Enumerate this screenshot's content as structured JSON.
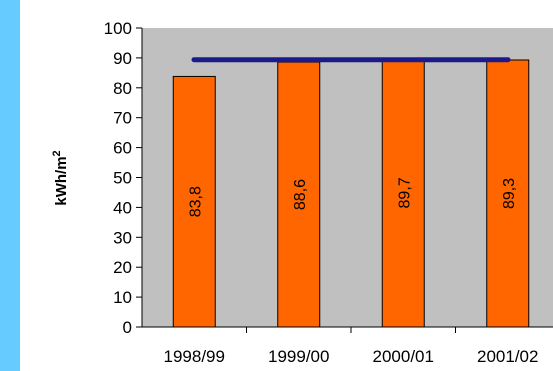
{
  "chart_data": {
    "type": "bar",
    "categories": [
      "1998/99",
      "1999/00",
      "2000/01",
      "2001/02"
    ],
    "values": [
      83.8,
      88.6,
      89.7,
      89.3
    ],
    "value_labels": [
      "83,8",
      "88,6",
      "89,7",
      "89,3"
    ],
    "reference_line": {
      "value": 89.4,
      "color": "#1a1a8c"
    },
    "ylabel": "kWh/m",
    "ylabel_superscript": "2",
    "yticks": [
      0,
      10,
      20,
      30,
      40,
      50,
      60,
      70,
      80,
      90,
      100
    ],
    "ylim": [
      0,
      100
    ],
    "grid": false,
    "bar_color": "#ff6600",
    "plot_background": "#c0c0c0",
    "page_background": "#66ccff"
  }
}
